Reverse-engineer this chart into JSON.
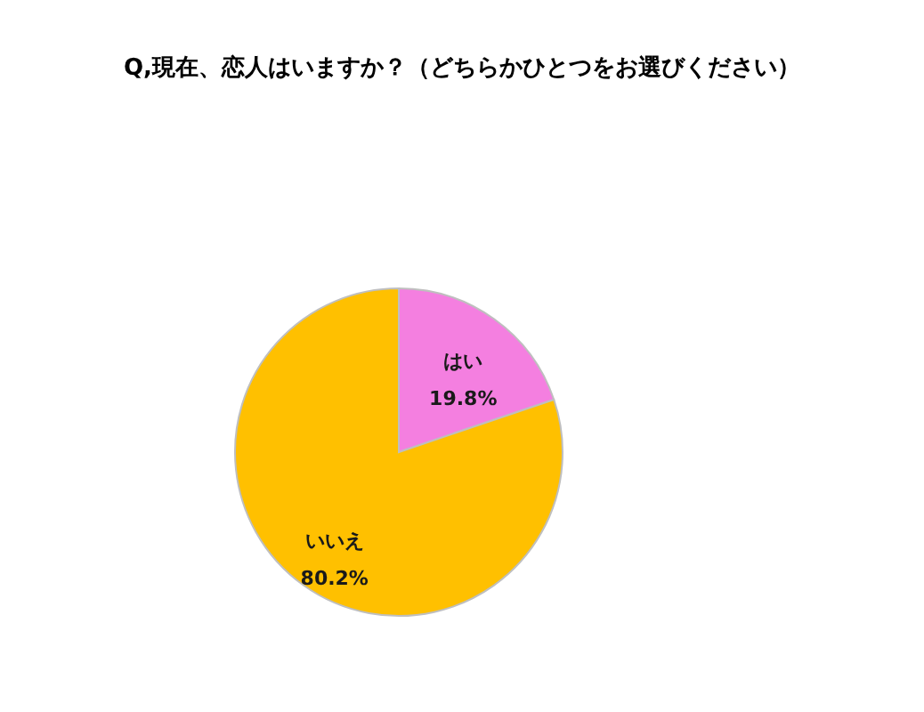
{
  "chart_data": {
    "type": "pie",
    "title": "Q,現在、恋人はいますか？（どちらかひとつをお選びください）",
    "categories": [
      "はい",
      "いいえ"
    ],
    "values": [
      19.8,
      80.2
    ],
    "colors": [
      "#f47fe0",
      "#ffc000"
    ],
    "value_labels": [
      "19.8%",
      "80.2%"
    ],
    "legend": false
  }
}
